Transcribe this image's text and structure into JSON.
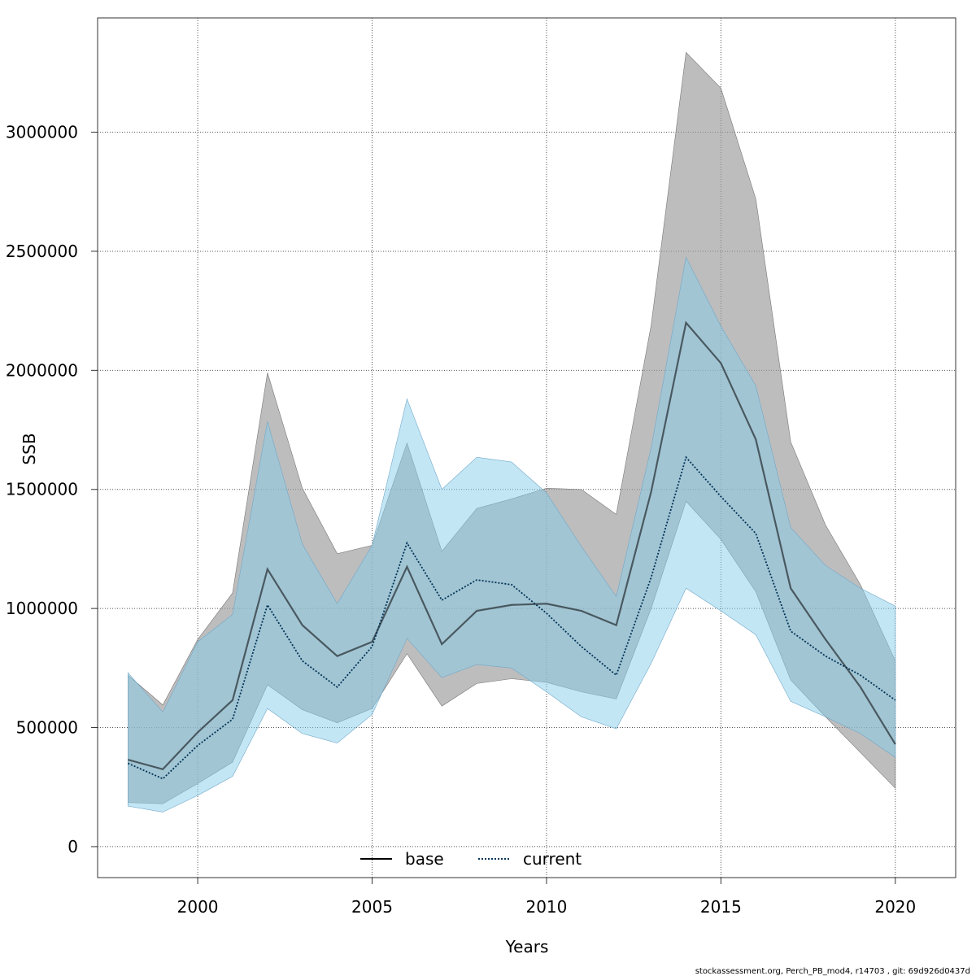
{
  "chart_data": {
    "type": "area",
    "xlabel": "Years",
    "ylabel": "SSB",
    "xlim": [
      1997.13,
      2021.73
    ],
    "ylim": [
      -130000,
      3480000
    ],
    "x_ticks": [
      2000,
      2005,
      2010,
      2015,
      2020
    ],
    "y_ticks": [
      0,
      500000,
      1000000,
      1500000,
      2000000,
      2500000,
      3000000
    ],
    "x_tick_labels": [
      "2000",
      "2005",
      "2010",
      "2015",
      "2020"
    ],
    "y_tick_labels": [
      "0",
      "500000",
      "1000000",
      "1500000",
      "2000000",
      "2500000",
      "3000000"
    ],
    "grid": true,
    "legend_position": "bottom-center",
    "x": [
      1998,
      1999,
      2000,
      2001,
      2002,
      2003,
      2004,
      2005,
      2006,
      2007,
      2008,
      2009,
      2010,
      2011,
      2012,
      2013,
      2014,
      2015,
      2016,
      2017,
      2018,
      2019,
      2020
    ],
    "series": [
      {
        "name": "base",
        "line_style": "solid",
        "line_color": "#000000",
        "band_color": "#999999",
        "values": [
          365000,
          325000,
          480000,
          615000,
          1165000,
          930000,
          800000,
          860000,
          1175000,
          850000,
          990000,
          1015000,
          1020000,
          990000,
          930000,
          1490000,
          2200000,
          2030000,
          1710000,
          1085000,
          870000,
          670000,
          430000
        ],
        "lower": [
          185000,
          180000,
          265000,
          355000,
          680000,
          575000,
          520000,
          580000,
          810000,
          590000,
          685000,
          705000,
          690000,
          650000,
          620000,
          1000000,
          1450000,
          1290000,
          1070000,
          700000,
          545000,
          395000,
          245000
        ],
        "upper": [
          720000,
          595000,
          870000,
          1065000,
          1990000,
          1505000,
          1230000,
          1265000,
          1695000,
          1240000,
          1420000,
          1460000,
          1505000,
          1500000,
          1395000,
          2190000,
          3335000,
          3185000,
          2720000,
          1700000,
          1350000,
          1100000,
          780000
        ]
      },
      {
        "name": "current",
        "line_style": "dotted",
        "line_color": "#003355",
        "band_color": "#87CEEB",
        "values": [
          350000,
          285000,
          425000,
          535000,
          1015000,
          780000,
          670000,
          840000,
          1275000,
          1035000,
          1120000,
          1100000,
          980000,
          840000,
          720000,
          1130000,
          1635000,
          1470000,
          1315000,
          905000,
          800000,
          720000,
          615000
        ],
        "lower": [
          170000,
          145000,
          215000,
          295000,
          580000,
          475000,
          435000,
          555000,
          875000,
          710000,
          765000,
          750000,
          650000,
          545000,
          495000,
          770000,
          1085000,
          990000,
          890000,
          610000,
          545000,
          475000,
          375000
        ],
        "upper": [
          730000,
          565000,
          860000,
          975000,
          1785000,
          1270000,
          1020000,
          1265000,
          1880000,
          1500000,
          1635000,
          1615000,
          1485000,
          1260000,
          1050000,
          1675000,
          2475000,
          2185000,
          1935000,
          1340000,
          1180000,
          1085000,
          1010000
        ]
      }
    ],
    "footer": "stockassessment.org, Perch_PB_mod4, r14703 , git: 69d926d0437d"
  }
}
